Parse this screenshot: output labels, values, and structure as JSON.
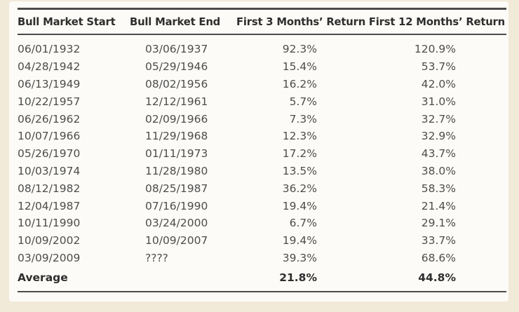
{
  "colors": {
    "page_background": "#f2ead8",
    "panel_background": "#fcfbf7",
    "rule_color": "#4b4b4b",
    "body_text": "#4d4d4d",
    "emphasis_text": "#2e2e2e"
  },
  "chart_data": {
    "type": "table",
    "columns": [
      "Bull Market Start",
      "Bull Market End",
      "First 3 Months’ Return",
      "First 12 Months’ Return"
    ],
    "rows": [
      [
        "06/01/1932",
        "03/06/1937",
        "92.3%",
        "120.9%"
      ],
      [
        "04/28/1942",
        "05/29/1946",
        "15.4%",
        "53.7%"
      ],
      [
        "06/13/1949",
        "08/02/1956",
        "16.2%",
        "42.0%"
      ],
      [
        "10/22/1957",
        "12/12/1961",
        "5.7%",
        "31.0%"
      ],
      [
        "06/26/1962",
        "02/09/1966",
        "7.3%",
        "32.7%"
      ],
      [
        "10/07/1966",
        "11/29/1968",
        "12.3%",
        "32.9%"
      ],
      [
        "05/26/1970",
        "01/11/1973",
        "17.2%",
        "43.7%"
      ],
      [
        "10/03/1974",
        "11/28/1980",
        "13.5%",
        "38.0%"
      ],
      [
        "08/12/1982",
        "08/25/1987",
        "36.2%",
        "58.3%"
      ],
      [
        "12/04/1987",
        "07/16/1990",
        "19.4%",
        "21.4%"
      ],
      [
        "10/11/1990",
        "03/24/2000",
        "6.7%",
        "29.1%"
      ],
      [
        "10/09/2002",
        "10/09/2007",
        "19.4%",
        "33.7%"
      ],
      [
        "03/09/2009",
        "????",
        "39.3%",
        "68.6%"
      ]
    ],
    "footer_row": [
      "Average",
      "",
      "21.8%",
      "44.8%"
    ]
  }
}
